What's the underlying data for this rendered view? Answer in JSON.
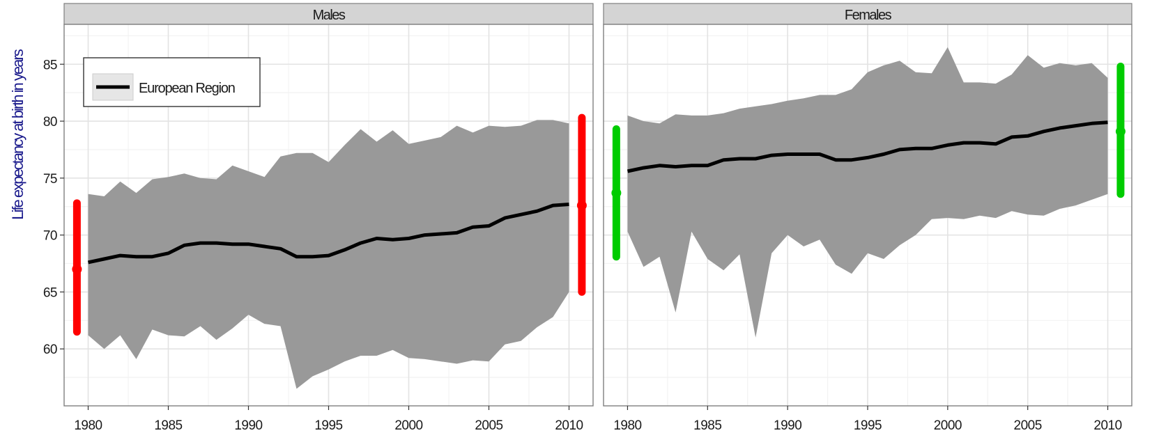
{
  "chart_data": {
    "type": "area",
    "ylabel": "Life expectancy at birth in years",
    "xlabel": "",
    "xlim": [
      1978.5,
      2011.5
    ],
    "ylim": [
      55,
      88.5
    ],
    "x_ticks": [
      1980,
      1985,
      1990,
      1995,
      2000,
      2005,
      2010
    ],
    "y_ticks": [
      60,
      65,
      70,
      75,
      80,
      85
    ],
    "grid": true,
    "legend": {
      "position": "top-left",
      "entries": [
        "European Region"
      ]
    },
    "band_color": "#999999",
    "line_color": "#000000",
    "panels": [
      {
        "title": "Males",
        "years": [
          1980,
          1981,
          1982,
          1983,
          1984,
          1985,
          1986,
          1987,
          1988,
          1989,
          1990,
          1991,
          1992,
          1993,
          1994,
          1995,
          1996,
          1997,
          1998,
          1999,
          2000,
          2001,
          2002,
          2003,
          2004,
          2005,
          2006,
          2007,
          2008,
          2009,
          2010
        ],
        "series": [
          {
            "name": "European Region",
            "values": [
              67.6,
              67.9,
              68.2,
              68.1,
              68.1,
              68.4,
              69.1,
              69.3,
              69.3,
              69.2,
              69.2,
              69.0,
              68.8,
              68.1,
              68.1,
              68.2,
              68.7,
              69.3,
              69.7,
              69.6,
              69.7,
              70.0,
              70.1,
              70.2,
              70.7,
              70.8,
              71.5,
              71.8,
              72.1,
              72.6,
              72.7
            ]
          }
        ],
        "band_min": [
          61.2,
          60.0,
          61.2,
          59.1,
          61.7,
          61.2,
          61.1,
          62.0,
          60.8,
          61.8,
          63.0,
          62.2,
          62.0,
          56.5,
          57.6,
          58.2,
          58.9,
          59.4,
          59.4,
          59.9,
          59.2,
          59.1,
          58.9,
          58.7,
          59.0,
          58.9,
          60.4,
          60.7,
          61.9,
          62.8,
          65.0
        ],
        "band_max": [
          73.6,
          73.4,
          74.7,
          73.7,
          74.9,
          75.1,
          75.4,
          75.0,
          74.9,
          76.1,
          75.6,
          75.1,
          76.9,
          77.2,
          77.2,
          76.4,
          77.9,
          79.3,
          78.2,
          79.2,
          78.0,
          78.3,
          78.6,
          79.6,
          79.0,
          79.6,
          79.5,
          79.6,
          80.1,
          80.1,
          79.8
        ],
        "country_range_start": {
          "min": 61.5,
          "max": 72.8,
          "mean": 67.0,
          "color": "#ff0000"
        },
        "country_range_end": {
          "min": 65.0,
          "max": 80.3,
          "mean": 72.6,
          "color": "#ff0000"
        }
      },
      {
        "title": "Females",
        "years": [
          1980,
          1981,
          1982,
          1983,
          1984,
          1985,
          1986,
          1987,
          1988,
          1989,
          1990,
          1991,
          1992,
          1993,
          1994,
          1995,
          1996,
          1997,
          1998,
          1999,
          2000,
          2001,
          2002,
          2003,
          2004,
          2005,
          2006,
          2007,
          2008,
          2009,
          2010
        ],
        "series": [
          {
            "name": "European Region",
            "values": [
              75.6,
              75.9,
              76.1,
              76.0,
              76.1,
              76.1,
              76.6,
              76.7,
              76.7,
              77.0,
              77.1,
              77.1,
              77.1,
              76.6,
              76.6,
              76.8,
              77.1,
              77.5,
              77.6,
              77.6,
              77.9,
              78.1,
              78.1,
              78.0,
              78.6,
              78.7,
              79.1,
              79.4,
              79.6,
              79.8,
              79.9
            ]
          }
        ],
        "band_min": [
          70.3,
          67.2,
          68.1,
          63.2,
          70.3,
          67.9,
          66.9,
          68.3,
          61.0,
          68.4,
          70.0,
          69.0,
          69.6,
          67.4,
          66.6,
          68.4,
          67.9,
          69.1,
          70.0,
          71.4,
          71.5,
          71.4,
          71.7,
          71.5,
          72.1,
          71.8,
          71.7,
          72.3,
          72.6,
          73.1,
          73.6
        ],
        "band_max": [
          80.5,
          80.0,
          79.8,
          80.6,
          80.5,
          80.5,
          80.7,
          81.1,
          81.3,
          81.5,
          81.8,
          82.0,
          82.3,
          82.3,
          82.8,
          84.3,
          84.9,
          85.3,
          84.3,
          84.2,
          86.5,
          83.4,
          83.4,
          83.3,
          84.1,
          85.8,
          84.7,
          85.1,
          84.9,
          85.1,
          83.8
        ],
        "country_range_start": {
          "min": 68.1,
          "max": 79.3,
          "mean": 73.7,
          "color": "#00cc00"
        },
        "country_range_end": {
          "min": 73.6,
          "max": 84.8,
          "mean": 79.1,
          "color": "#00cc00"
        }
      }
    ]
  }
}
